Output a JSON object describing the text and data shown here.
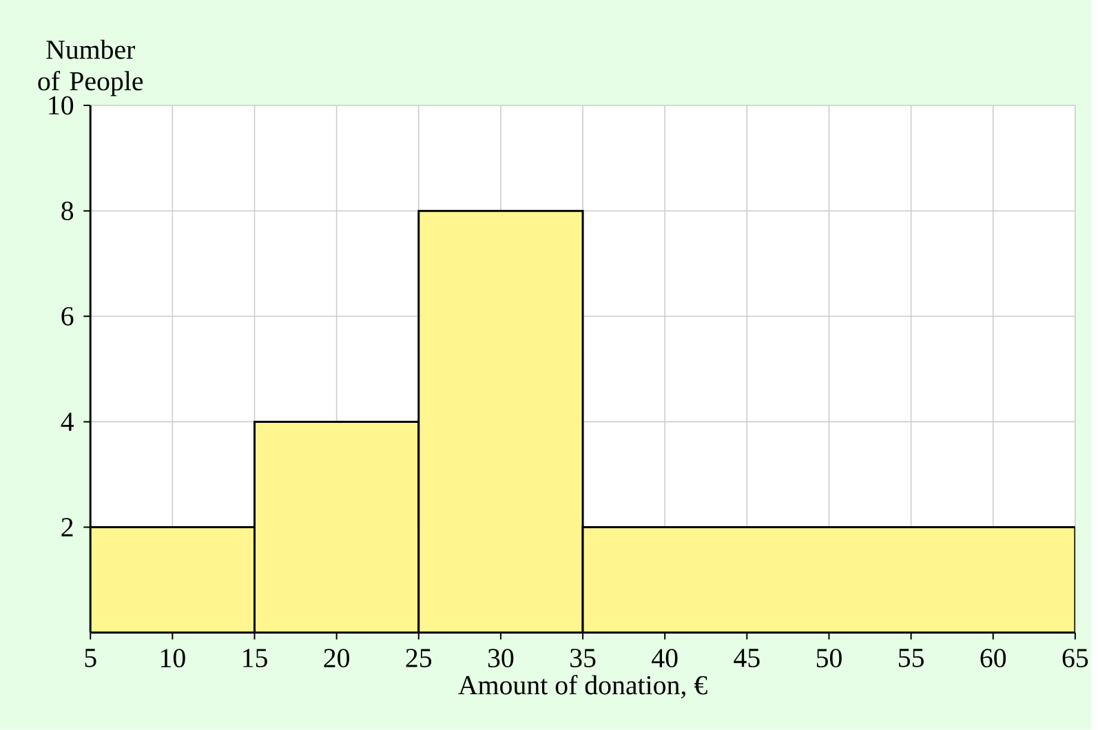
{
  "chart_data": {
    "type": "histogram",
    "xlabel": "Amount of donation, €",
    "ylabel": "Number of People",
    "bins": [
      5,
      15,
      25,
      35,
      65
    ],
    "values": [
      2,
      4,
      8,
      2
    ],
    "color": "#fff68f",
    "xlim": [
      5,
      65
    ],
    "xticks": [
      5,
      10,
      15,
      20,
      25,
      30,
      35,
      40,
      45,
      50,
      55,
      60,
      65
    ],
    "ylim": [
      0,
      10
    ],
    "yticks": [
      2,
      4,
      6,
      8,
      10
    ],
    "grid": true
  }
}
